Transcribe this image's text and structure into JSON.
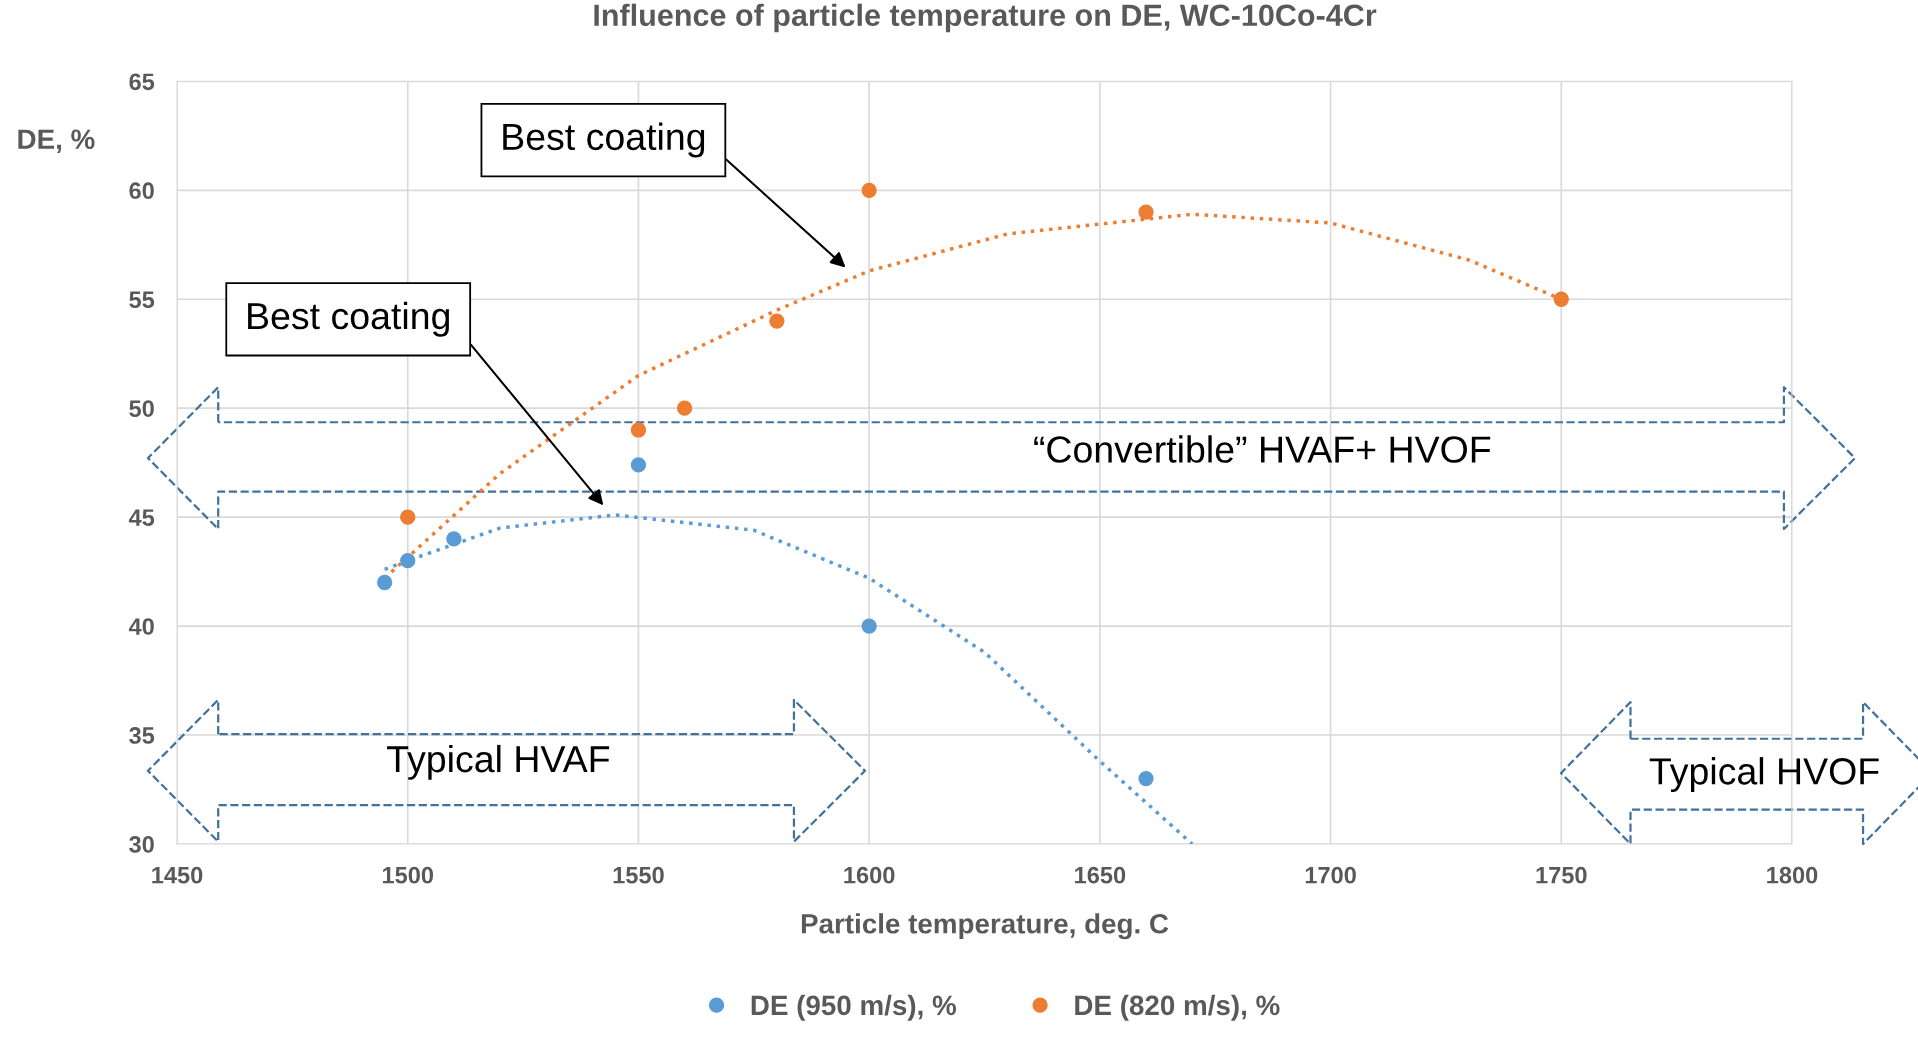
{
  "chart_data": {
    "type": "scatter",
    "title": "Influence of particle temperature on DE, WC-10Co-4Cr",
    "xlabel": "Particle temperature, deg. C",
    "ylabel": "DE, %",
    "xlim": [
      1450,
      1800
    ],
    "xticks": [
      1450,
      1500,
      1550,
      1600,
      1650,
      1700,
      1750,
      1800
    ],
    "ylim": [
      30,
      65
    ],
    "yticks": [
      30,
      35,
      40,
      45,
      50,
      55,
      60,
      65
    ],
    "grid": true,
    "legend": "bottom",
    "marker": "circle",
    "series": [
      {
        "name": "DE (950 m/s), %",
        "color": "#5b9bd5",
        "x": [
          1495,
          1500,
          1510,
          1550,
          1600,
          1660
        ],
        "values": [
          42,
          43,
          44,
          47.4,
          40,
          33
        ]
      },
      {
        "name": "DE (820 m/s), %",
        "color": "#ed7d31",
        "x": [
          1500,
          1550,
          1560,
          1580,
          1600,
          1660,
          1750
        ],
        "values": [
          45,
          49,
          50,
          54,
          60,
          59,
          55
        ]
      },
      {
        "type": "line",
        "color": "#5b9bd5",
        "line_style": "dotted",
        "marker": "none",
        "x": [
          1495,
          1500,
          1520,
          1545,
          1575,
          1600,
          1625,
          1650,
          1670
        ],
        "values": [
          42.6,
          43,
          44.5,
          45.1,
          44.4,
          42.2,
          38.8,
          33.8,
          30
        ]
      },
      {
        "type": "line",
        "color": "#ed7d31",
        "line_style": "dotted",
        "marker": "none",
        "x": [
          1495,
          1520,
          1550,
          1580,
          1600,
          1630,
          1670,
          1700,
          1730,
          1750
        ],
        "values": [
          42.2,
          47,
          51.5,
          54.5,
          56.3,
          58,
          58.9,
          58.5,
          56.8,
          55
        ]
      }
    ],
    "annotations": [
      "Best coating",
      "Best coating",
      "Typical HVAF",
      "“Convertible” HVAF+ HVOF",
      "Typical HVOF"
    ]
  }
}
